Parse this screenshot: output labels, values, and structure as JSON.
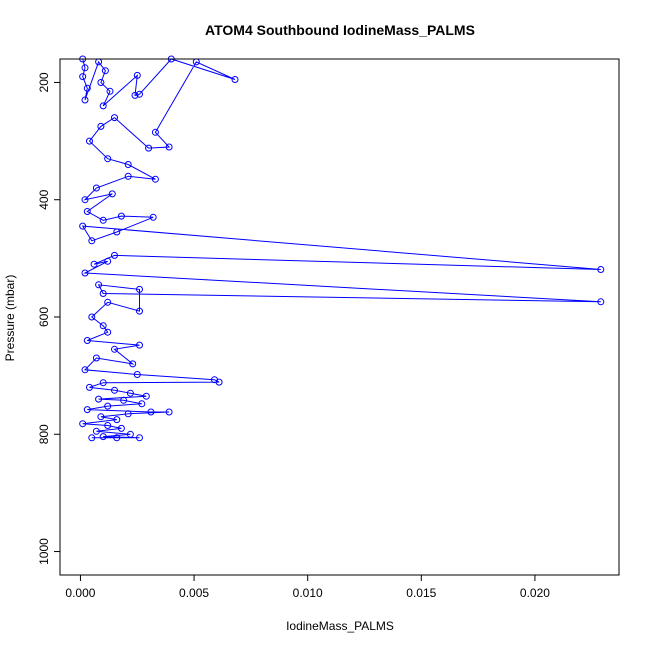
{
  "chart_data": {
    "type": "scatter",
    "title": "ATOM4 Southbound IodineMass_PALMS",
    "xlabel": "IodineMass_PALMS",
    "ylabel": "Pressure (mbar)",
    "xlim": [
      -0.0009,
      0.0237
    ],
    "ylim": [
      1040,
      160
    ],
    "y_reversed": true,
    "x_ticks": [
      0.0,
      0.005,
      0.01,
      0.015,
      0.02
    ],
    "x_tick_labels": [
      "0.000",
      "0.005",
      "0.010",
      "0.015",
      "0.020"
    ],
    "y_ticks": [
      200,
      400,
      600,
      800,
      1000
    ],
    "y_tick_labels": [
      "200",
      "400",
      "600",
      "800",
      "1000"
    ],
    "grid": false,
    "legend": "none",
    "series": [
      {
        "color": "#0000ff",
        "marker": "open-circle",
        "connected": true,
        "points": [
          [
            0.0001,
            160
          ],
          [
            0.0002,
            175
          ],
          [
            0.0001,
            190
          ],
          [
            0.0003,
            210
          ],
          [
            0.0002,
            230
          ],
          [
            0.0008,
            165
          ],
          [
            0.0011,
            180
          ],
          [
            0.0009,
            200
          ],
          [
            0.0013,
            215
          ],
          [
            0.001,
            240
          ],
          [
            0.0025,
            188
          ],
          [
            0.0024,
            222
          ],
          [
            0.0026,
            220
          ],
          [
            0.004,
            160
          ],
          [
            0.0068,
            195
          ],
          [
            0.0051,
            165
          ],
          [
            0.0033,
            285
          ],
          [
            0.0039,
            310
          ],
          [
            0.003,
            312
          ],
          [
            0.0015,
            260
          ],
          [
            0.0009,
            275
          ],
          [
            0.0004,
            300
          ],
          [
            0.0012,
            330
          ],
          [
            0.0021,
            340
          ],
          [
            0.0033,
            365
          ],
          [
            0.0021,
            360
          ],
          [
            0.0007,
            380
          ],
          [
            0.0002,
            400
          ],
          [
            0.0014,
            390
          ],
          [
            0.0003,
            420
          ],
          [
            0.001,
            435
          ],
          [
            0.0018,
            428
          ],
          [
            0.0032,
            430
          ],
          [
            0.0016,
            455
          ],
          [
            0.0005,
            470
          ],
          [
            0.0001,
            445
          ],
          [
            0.0229,
            519
          ],
          [
            0.0015,
            495
          ],
          [
            0.0006,
            510
          ],
          [
            0.0012,
            505
          ],
          [
            0.0002,
            525
          ],
          [
            0.0229,
            574
          ],
          [
            0.001,
            560
          ],
          [
            0.0008,
            545
          ],
          [
            0.0026,
            553
          ],
          [
            0.0026,
            590
          ],
          [
            0.0012,
            575
          ],
          [
            0.0005,
            600
          ],
          [
            0.001,
            615
          ],
          [
            0.0012,
            626
          ],
          [
            0.0003,
            640
          ],
          [
            0.0026,
            648
          ],
          [
            0.0015,
            655
          ],
          [
            0.0023,
            680
          ],
          [
            0.0007,
            670
          ],
          [
            0.0002,
            690
          ],
          [
            0.0025,
            698
          ],
          [
            0.0059,
            707
          ],
          [
            0.0061,
            711
          ],
          [
            0.001,
            712
          ],
          [
            0.0004,
            720
          ],
          [
            0.0015,
            725
          ],
          [
            0.0022,
            730
          ],
          [
            0.0029,
            735
          ],
          [
            0.0008,
            740
          ],
          [
            0.0019,
            742
          ],
          [
            0.0027,
            748
          ],
          [
            0.0012,
            752
          ],
          [
            0.0003,
            758
          ],
          [
            0.0031,
            762
          ],
          [
            0.0039,
            762
          ],
          [
            0.0021,
            765
          ],
          [
            0.0009,
            770
          ],
          [
            0.0016,
            775
          ],
          [
            0.0001,
            782
          ],
          [
            0.0012,
            785
          ],
          [
            0.0018,
            790
          ],
          [
            0.0007,
            795
          ],
          [
            0.0022,
            800
          ],
          [
            0.001,
            804
          ],
          [
            0.0026,
            806
          ],
          [
            0.0016,
            806
          ],
          [
            0.0005,
            806
          ]
        ]
      }
    ]
  }
}
